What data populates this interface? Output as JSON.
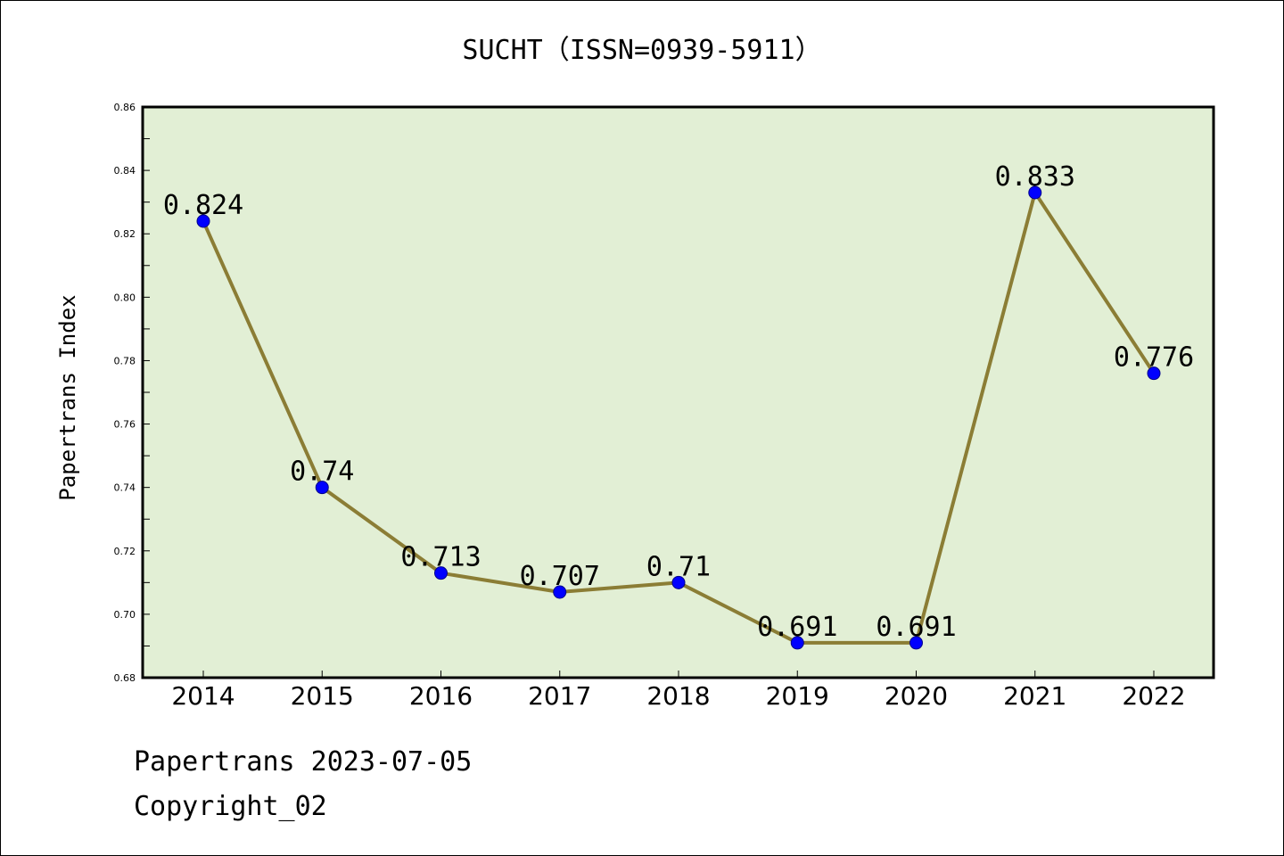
{
  "chart_data": {
    "type": "line",
    "title": "SUCHT（ISSN=0939-5911）",
    "xlabel": "",
    "ylabel": "Papertrans Index",
    "categories": [
      "2014",
      "2015",
      "2016",
      "2017",
      "2018",
      "2019",
      "2020",
      "2021",
      "2022"
    ],
    "series": [
      {
        "values": [
          0.824,
          0.74,
          0.713,
          0.707,
          0.71,
          0.691,
          0.691,
          0.833,
          0.776
        ],
        "data_labels": [
          "0.824",
          "0.74",
          "0.713",
          "0.707",
          "0.71",
          "0.691",
          "0.691",
          "0.833",
          "0.776"
        ],
        "line_color": "#8b7d35",
        "marker_color": "#0000ff"
      }
    ],
    "ylim": [
      0.68,
      0.86
    ],
    "yticks": [
      "0.68",
      "0.70",
      "0.72",
      "0.74",
      "0.76",
      "0.78",
      "0.80",
      "0.82",
      "0.84",
      "0.86"
    ],
    "plot_background": "#e2efd5",
    "grid": false
  },
  "footer": {
    "line1": "Papertrans 2023-07-05",
    "line2": "Copyright_02"
  }
}
